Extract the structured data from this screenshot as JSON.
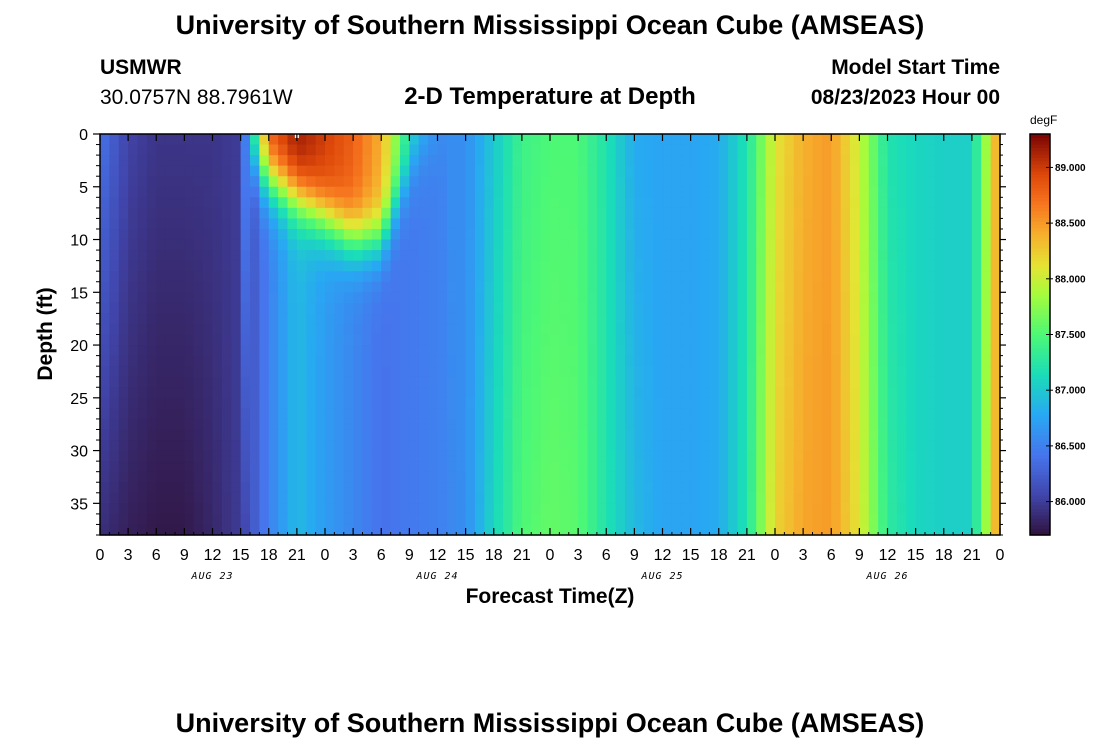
{
  "header": {
    "title": "University of Southern Mississippi Ocean Cube (AMSEAS)",
    "station": "USMWR",
    "coords": "30.0757N  88.7961W",
    "subtitle": "2-D Temperature at Depth",
    "start_label": "Model Start Time",
    "start_value": "08/23/2023 Hour 00"
  },
  "footer": {
    "title": "University of Southern Mississippi Ocean Cube (AMSEAS)"
  },
  "chart_data": {
    "type": "heatmap",
    "title": "2-D Temperature at Depth",
    "xlabel": "Forecast Time(Z)",
    "ylabel": "Depth (ft)",
    "x_range_hours": [
      0,
      96
    ],
    "x_tick_labels": [
      "0",
      "3",
      "6",
      "9",
      "12",
      "15",
      "18",
      "21",
      "0",
      "3",
      "6",
      "9",
      "12",
      "15",
      "18",
      "21",
      "0",
      "3",
      "6",
      "9",
      "12",
      "15",
      "18",
      "21",
      "0",
      "3",
      "6",
      "9",
      "12",
      "15",
      "18",
      "21",
      "0"
    ],
    "x_day_labels": [
      {
        "hour": 12,
        "label": "AUG 23"
      },
      {
        "hour": 36,
        "label": "AUG 24"
      },
      {
        "hour": 60,
        "label": "AUG 25"
      },
      {
        "hour": 84,
        "label": "AUG 26"
      }
    ],
    "ylim": [
      0,
      38
    ],
    "y_inverted": true,
    "y_ticks": [
      0,
      5,
      10,
      15,
      20,
      25,
      30,
      35
    ],
    "colorbar": {
      "unit": "degF",
      "range": [
        85.7,
        89.3
      ],
      "ticks": [
        86.0,
        86.5,
        87.0,
        87.5,
        88.0,
        88.5,
        89.0
      ],
      "tick_labels": [
        "86.000",
        "86.500",
        "87.000",
        "87.500",
        "88.000",
        "88.500",
        "89.000"
      ]
    },
    "hours": [
      0,
      3,
      6,
      9,
      12,
      15,
      18,
      21,
      24,
      27,
      30,
      33,
      36,
      39,
      42,
      45,
      48,
      51,
      54,
      57,
      60,
      63,
      66,
      69,
      72,
      75,
      78,
      81,
      84,
      87,
      90,
      93,
      96
    ],
    "surface_temp_degF": [
      86.4,
      86.05,
      85.95,
      85.95,
      85.95,
      86.0,
      88.9,
      89.2,
      89.0,
      88.8,
      88.4,
      87.2,
      86.6,
      86.6,
      87.0,
      87.4,
      87.5,
      87.5,
      87.2,
      86.8,
      86.75,
      86.75,
      86.8,
      87.2,
      88.1,
      88.4,
      88.5,
      88.0,
      87.2,
      87.1,
      87.05,
      87.05,
      88.6
    ],
    "bottom_temp_degF": [
      85.9,
      85.8,
      85.75,
      85.75,
      85.85,
      86.0,
      86.5,
      86.9,
      86.7,
      86.55,
      86.4,
      86.45,
      86.5,
      86.6,
      87.1,
      87.5,
      87.6,
      87.55,
      87.2,
      86.9,
      86.75,
      86.75,
      86.8,
      87.2,
      88.2,
      88.45,
      88.5,
      88.1,
      87.3,
      87.1,
      87.05,
      87.05,
      88.6
    ]
  }
}
